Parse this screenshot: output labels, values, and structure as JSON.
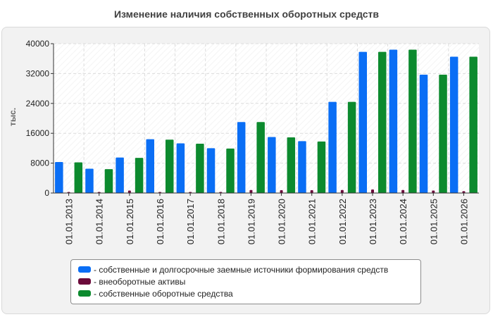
{
  "chart_data": {
    "type": "bar",
    "title": "Изменение наличия собственных оборотных средств",
    "ylabel": "тыс.",
    "xlabel": "",
    "ylim": [
      0,
      40000
    ],
    "yticks": [
      0,
      8000,
      16000,
      24000,
      32000,
      40000
    ],
    "grid": true,
    "legend_position": "bottom",
    "categories": [
      "01.01.2013",
      "01.01.2014",
      "01.01.2015",
      "01.01.2016",
      "01.01.2017",
      "01.01.2018",
      "01.01.2019",
      "01.01.2020",
      "01.01.2021",
      "01.01.2022",
      "01.01.2023",
      "01.01.2024",
      "01.01.2025",
      "01.01.2026"
    ],
    "series": [
      {
        "name": "- собственные и долгосрочные заемные источники формирования средств",
        "color": "#0a6ef5",
        "values": [
          8300,
          6500,
          9500,
          14400,
          13300,
          12000,
          19000,
          15000,
          13900,
          24400,
          37800,
          38400,
          31700,
          36500
        ]
      },
      {
        "name": "- внеоборотные активы",
        "color": "#6b0a3a",
        "values": [
          150,
          100,
          650,
          120,
          200,
          120,
          800,
          750,
          750,
          800,
          950,
          800,
          650,
          500
        ]
      },
      {
        "name": "- собственные оборотные средства",
        "color": "#0c8a2e",
        "values": [
          8200,
          6400,
          9400,
          14300,
          13200,
          11900,
          19000,
          14900,
          13800,
          24400,
          37800,
          38400,
          31700,
          36500
        ]
      }
    ]
  }
}
